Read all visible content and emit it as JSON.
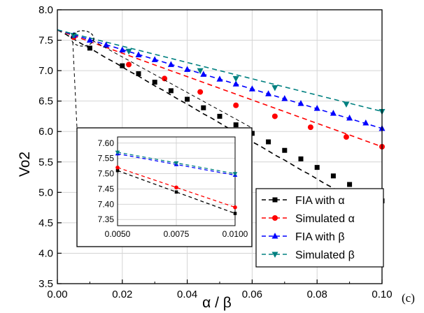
{
  "panel_label": "(c)",
  "chart_data": {
    "type": "line",
    "title": "",
    "xlabel": "α / β",
    "ylabel": "Vo2",
    "xlim": [
      0,
      0.1
    ],
    "ylim": [
      3.5,
      8.0
    ],
    "x_ticks": [
      "0.00",
      "0.02",
      "0.04",
      "0.06",
      "0.08",
      "0.10"
    ],
    "y_ticks": [
      "3.5",
      "4.0",
      "4.5",
      "5.0",
      "5.5",
      "6.0",
      "6.5",
      "7.0",
      "7.5",
      "8.0"
    ],
    "grid": true,
    "legend_position": "bottom-right",
    "series": [
      {
        "name": "FIA with α",
        "color": "#000000",
        "marker": "square",
        "dashed": true,
        "x": [
          0,
          0.0025,
          0.005,
          0.0075,
          0.01,
          0.0125,
          0.015,
          0.0175,
          0.02,
          0.0225,
          0.025,
          0.0275,
          0.03,
          0.0325,
          0.035,
          0.0375,
          0.04,
          0.0425,
          0.045,
          0.0475,
          0.05,
          0.0525,
          0.055,
          0.0575,
          0.06,
          0.0625,
          0.065,
          0.0675,
          0.07,
          0.0725,
          0.075,
          0.0775,
          0.08,
          0.0825,
          0.085,
          0.0875,
          0.09,
          0.0925,
          0.095,
          0.0975,
          0.1
        ],
        "y": [
          7.67,
          7.6,
          7.52,
          7.44,
          7.37,
          7.29,
          7.21,
          7.14,
          7.06,
          6.98,
          6.91,
          6.83,
          6.75,
          6.68,
          6.6,
          6.52,
          6.45,
          6.37,
          6.29,
          6.22,
          6.14,
          6.06,
          5.99,
          5.91,
          5.83,
          5.76,
          5.68,
          5.6,
          5.53,
          5.45,
          5.37,
          5.3,
          5.22,
          5.14,
          5.07,
          4.99,
          4.91,
          4.84,
          4.76,
          4.68,
          4.61
        ],
        "markers_x": [
          0.01,
          0.02,
          0.025,
          0.03,
          0.035,
          0.04,
          0.045,
          0.05,
          0.055,
          0.06,
          0.065,
          0.07,
          0.075,
          0.08,
          0.085,
          0.09,
          0.095,
          0.1
        ],
        "markers_y": [
          7.37,
          7.08,
          6.95,
          6.81,
          6.67,
          6.53,
          6.39,
          6.25,
          6.11,
          5.97,
          5.83,
          5.69,
          5.55,
          5.41,
          5.27,
          5.13,
          4.99,
          4.86
        ]
      },
      {
        "name": "Simulated α",
        "color": "#ff0000",
        "marker": "circle",
        "dashed": true,
        "x": [
          0,
          0.1
        ],
        "y": [
          7.67,
          5.75
        ],
        "markers_x": [
          0.005,
          0.022,
          0.033,
          0.044,
          0.055,
          0.067,
          0.078,
          0.089,
          0.1
        ],
        "markers_y": [
          7.55,
          7.1,
          6.87,
          6.65,
          6.43,
          6.25,
          6.07,
          5.91,
          5.75
        ]
      },
      {
        "name": "FIA with β",
        "color": "#0000ff",
        "marker": "triangle-up",
        "dashed": true,
        "x": [
          0,
          0.1
        ],
        "y": [
          7.67,
          6.05
        ],
        "markers_x": [
          0.005,
          0.01,
          0.015,
          0.02,
          0.025,
          0.03,
          0.035,
          0.04,
          0.045,
          0.05,
          0.055,
          0.06,
          0.065,
          0.07,
          0.075,
          0.08,
          0.085,
          0.09,
          0.095,
          0.1
        ],
        "markers_y": [
          7.58,
          7.5,
          7.42,
          7.34,
          7.26,
          7.18,
          7.1,
          7.02,
          6.94,
          6.86,
          6.78,
          6.7,
          6.62,
          6.54,
          6.46,
          6.38,
          6.3,
          6.22,
          6.14,
          6.05
        ]
      },
      {
        "name": "Simulated β",
        "color": "#008080",
        "marker": "triangle-down",
        "dashed": true,
        "x": [
          0,
          0.1
        ],
        "y": [
          7.67,
          6.33
        ],
        "markers_x": [
          0.005,
          0.022,
          0.044,
          0.055,
          0.067,
          0.089,
          0.1
        ],
        "markers_y": [
          7.58,
          7.32,
          7.0,
          6.87,
          6.72,
          6.45,
          6.33
        ]
      }
    ],
    "inset": {
      "xlim": [
        0.005,
        0.01
      ],
      "ylim": [
        7.33,
        7.62
      ],
      "x_ticks": [
        "0.0050",
        "0.0075",
        "0.0100"
      ],
      "y_ticks": [
        "7.35",
        "7.40",
        "7.45",
        "7.50",
        "7.55",
        "7.60"
      ],
      "grid": true,
      "series": [
        {
          "name": "FIA with α",
          "x": [
            0.005,
            0.0075,
            0.01
          ],
          "y": [
            7.51,
            7.44,
            7.37
          ]
        },
        {
          "name": "Simulated α",
          "x": [
            0.005,
            0.0075,
            0.01
          ],
          "y": [
            7.52,
            7.455,
            7.39
          ]
        },
        {
          "name": "FIA with β",
          "x": [
            0.005,
            0.0075,
            0.01
          ],
          "y": [
            7.565,
            7.53,
            7.495
          ]
        },
        {
          "name": "Simulated β",
          "x": [
            0.005,
            0.0075,
            0.01
          ],
          "y": [
            7.57,
            7.535,
            7.5
          ]
        }
      ]
    }
  }
}
